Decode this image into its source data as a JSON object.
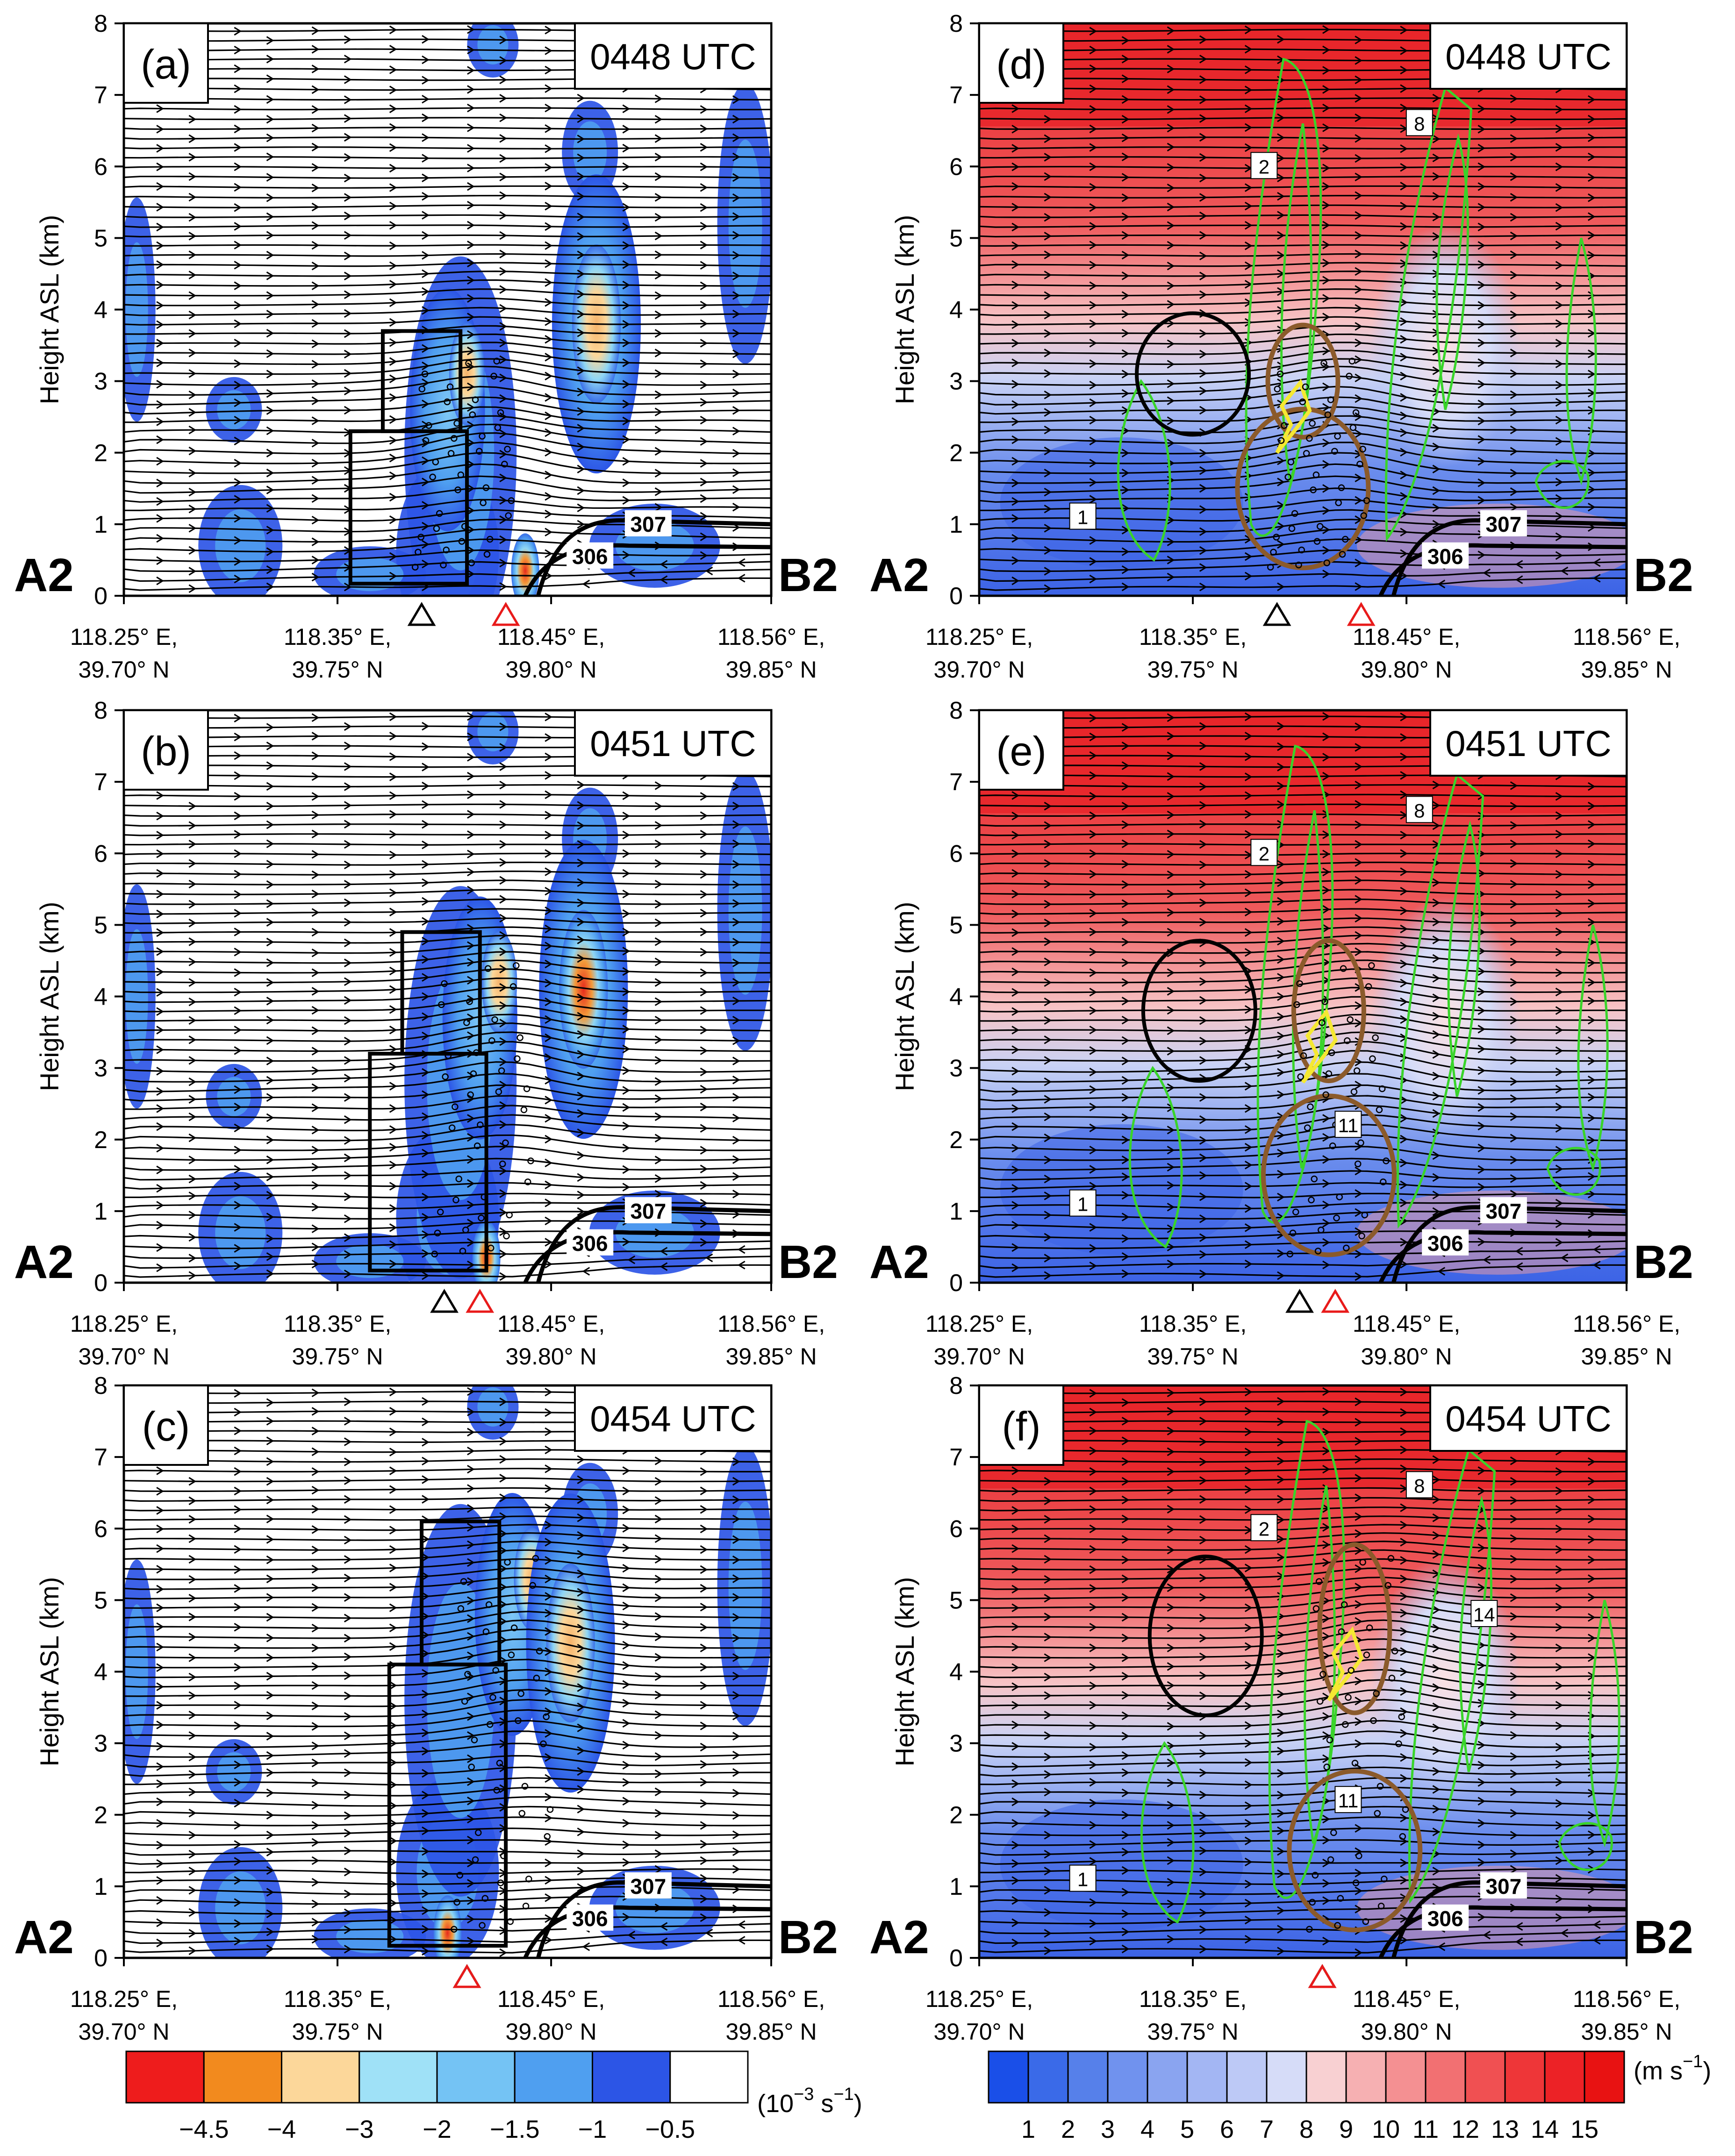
{
  "chart_data": {
    "type": "heatmap",
    "panels": [
      {
        "id": "a",
        "label": "(a)",
        "time": "0448 UTC",
        "variable": "vorticity",
        "column": "left",
        "contour_labels": [
          "306",
          "307"
        ]
      },
      {
        "id": "b",
        "label": "(b)",
        "time": "0451 UTC",
        "variable": "vorticity",
        "column": "left",
        "contour_labels": [
          "306",
          "307"
        ]
      },
      {
        "id": "c",
        "label": "(c)",
        "time": "0454 UTC",
        "variable": "vorticity",
        "column": "left",
        "contour_labels": [
          "306",
          "307"
        ]
      },
      {
        "id": "d",
        "label": "(d)",
        "time": "0448 UTC",
        "variable": "wind_speed",
        "column": "right",
        "contour_labels": [
          "306",
          "307"
        ],
        "green_contour_labels": [
          "1",
          "2",
          "8"
        ]
      },
      {
        "id": "e",
        "label": "(e)",
        "time": "0451 UTC",
        "variable": "wind_speed",
        "column": "right",
        "contour_labels": [
          "306",
          "307"
        ],
        "green_contour_labels": [
          "1",
          "2",
          "8",
          "11"
        ]
      },
      {
        "id": "f",
        "label": "(f)",
        "time": "0454 UTC",
        "variable": "wind_speed",
        "column": "right",
        "contour_labels": [
          "306",
          "307"
        ],
        "green_contour_labels": [
          "1",
          "2",
          "8",
          "11",
          "14"
        ]
      }
    ],
    "ylabel": "Height ASL (km)",
    "ylim": [
      0,
      8
    ],
    "yticks": [
      "0",
      "1",
      "2",
      "3",
      "4",
      "5",
      "6",
      "7",
      "8"
    ],
    "xticks": [
      {
        "lon": "118.25° E,",
        "lat": "39.70° N"
      },
      {
        "lon": "118.35° E,",
        "lat": "39.75° N"
      },
      {
        "lon": "118.45° E,",
        "lat": "39.80° N"
      },
      {
        "lon": "118.56° E,",
        "lat": "39.85° N"
      }
    ],
    "section_start": "A2",
    "section_end": "B2",
    "colorbar_left": {
      "labels": [
        "−4.5",
        "−4",
        "−3",
        "−2",
        "−1.5",
        "−1",
        "−0.5"
      ],
      "colors": [
        "#ee1c1c",
        "#f28a1e",
        "#fcd79a",
        "#9fe1f7",
        "#74c3f4",
        "#4f9ff0",
        "#2c55e6",
        "#ffffff"
      ],
      "unit": "(10",
      "unit_exp": "−3",
      "unit_tail": " s",
      "unit_exp2": "−1",
      "unit_close": ")"
    },
    "colorbar_right": {
      "labels": [
        "1",
        "2",
        "3",
        "4",
        "5",
        "6",
        "7",
        "8",
        "9",
        "10",
        "11",
        "12",
        "13",
        "14",
        "15"
      ],
      "colors": [
        "#1a4fe8",
        "#3a6ae8",
        "#5680ea",
        "#7092ee",
        "#8aa4f0",
        "#a3b6f3",
        "#bdc9f6",
        "#d6dcf8",
        "#f8d0d2",
        "#f6b0b2",
        "#f49092",
        "#f27072",
        "#f05052",
        "#ee3638",
        "#ec2226",
        "#e81212"
      ],
      "unit": "(m s",
      "unit_exp": "−1",
      "unit_close": ")"
    }
  }
}
